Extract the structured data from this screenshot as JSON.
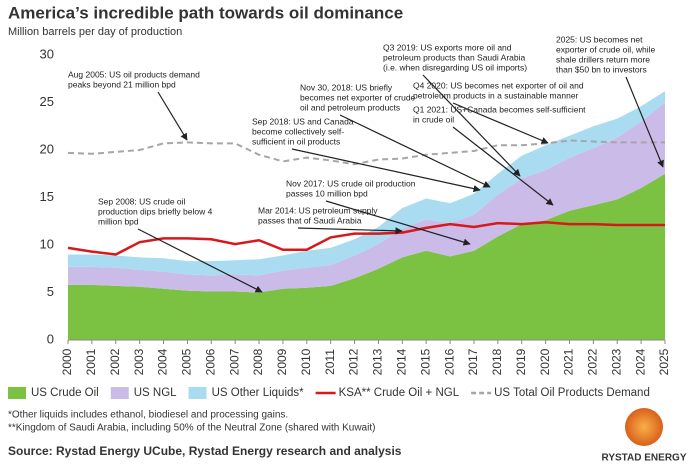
{
  "chart_data": {
    "type": "stacked-area",
    "title": "America’s incredible path towards oil dominance",
    "subtitle": "Million barrels per day of production",
    "x": [
      2000,
      2001,
      2002,
      2003,
      2004,
      2005,
      2006,
      2007,
      2008,
      2009,
      2010,
      2011,
      2012,
      2013,
      2014,
      2015,
      2016,
      2017,
      2018,
      2019,
      2020,
      2021,
      2022,
      2023,
      2024,
      2025
    ],
    "xlim": [
      2000,
      2025
    ],
    "xticks": [
      2000,
      2001,
      2002,
      2003,
      2004,
      2005,
      2006,
      2007,
      2008,
      2009,
      2010,
      2011,
      2012,
      2013,
      2014,
      2015,
      2016,
      2017,
      2018,
      2019,
      2020,
      2021,
      2022,
      2023,
      2024,
      2025
    ],
    "ylim": [
      0,
      30
    ],
    "yticks": [
      0,
      5,
      10,
      15,
      20,
      25,
      30
    ],
    "series": [
      {
        "name": "US Crude Oil",
        "color": "#7cc242",
        "kind": "area",
        "values": [
          5.8,
          5.8,
          5.7,
          5.6,
          5.4,
          5.2,
          5.1,
          5.1,
          5.0,
          5.4,
          5.5,
          5.7,
          6.5,
          7.5,
          8.7,
          9.4,
          8.8,
          9.4,
          10.9,
          12.2,
          12.6,
          13.6,
          14.2,
          14.8,
          16.0,
          17.5
        ]
      },
      {
        "name": "US NGL",
        "color": "#cbbbe9",
        "kind": "area",
        "values": [
          1.9,
          1.9,
          1.9,
          1.8,
          1.8,
          1.7,
          1.7,
          1.8,
          1.8,
          1.9,
          2.1,
          2.2,
          2.4,
          2.6,
          3.0,
          3.3,
          3.5,
          3.8,
          4.4,
          4.8,
          5.3,
          5.6,
          6.0,
          6.5,
          7.0,
          7.5
        ]
      },
      {
        "name": "US Other Liquids*",
        "color": "#a9dcf1",
        "kind": "area",
        "values": [
          1.3,
          1.3,
          1.3,
          1.3,
          1.4,
          1.4,
          1.5,
          1.5,
          1.7,
          1.6,
          1.8,
          1.8,
          1.7,
          1.8,
          2.2,
          2.2,
          2.1,
          2.2,
          2.2,
          2.4,
          2.6,
          2.3,
          2.3,
          2.0,
          1.6,
          1.2
        ]
      },
      {
        "name": "KSA** Crude Oil + NGL",
        "color": "#d7191c",
        "kind": "line",
        "values": [
          9.7,
          9.3,
          9.0,
          10.3,
          10.7,
          10.7,
          10.6,
          10.1,
          10.5,
          9.5,
          9.5,
          10.8,
          11.2,
          11.2,
          11.3,
          11.8,
          12.2,
          11.9,
          12.3,
          12.2,
          12.4,
          12.2,
          12.2,
          12.1,
          12.1,
          12.1
        ]
      },
      {
        "name": "US Total Oil Products Demand",
        "color": "#a6a6a6",
        "kind": "dashed",
        "values": [
          19.7,
          19.6,
          19.8,
          20.0,
          20.7,
          20.8,
          20.7,
          20.7,
          19.5,
          18.8,
          19.2,
          18.9,
          18.5,
          19.0,
          19.1,
          19.5,
          19.7,
          19.9,
          20.5,
          20.5,
          20.7,
          21.0,
          20.9,
          20.8,
          20.8,
          20.8
        ]
      }
    ],
    "annotations": [
      [
        "Aug 2005: US oil products demand",
        "peaks beyond 21 million bpd"
      ],
      [
        "Sep 2008: US crude oil",
        "production dips briefly below 4",
        "million bpd"
      ],
      [
        "Mar 2014: US petroleum supply",
        "passes that of Saudi Arabia"
      ],
      [
        "Nov 2017: US crude oil production",
        "passes 10 million bpd"
      ],
      [
        "Sep 2018: US and Canada",
        "become collectively self-",
        "sufficient in oil products"
      ],
      [
        "Nov 30, 2018: US briefly",
        "becomes net exporter of crude",
        "oil and petroleum products"
      ],
      [
        "Q3 2019: US exports more oil and",
        "petroleum products than Saudi Arabia",
        "(i.e. when disregarding US oil imports)"
      ],
      [
        "Q4 2020: US becomes net exporter of oil and",
        "petroleum products in a sustainable manner"
      ],
      [
        "Q1 2021: US+Canada becomes self-sufficient",
        "in crude oil"
      ],
      [
        "2025: US becomes net",
        "exporter of crude oil, while",
        "shale drillers return more",
        "than $50 bn to investors"
      ]
    ],
    "footnotes": [
      "*Other liquids includes ethanol, biodiesel and processing gains.",
      "**Kingdom of Saudi Arabia, including 50% of the Neutral Zone (shared with Kuwait)"
    ],
    "source": "Source: Rystad Energy UCube, Rystad Energy research and analysis",
    "logo": "RYSTAD ENERGY"
  }
}
